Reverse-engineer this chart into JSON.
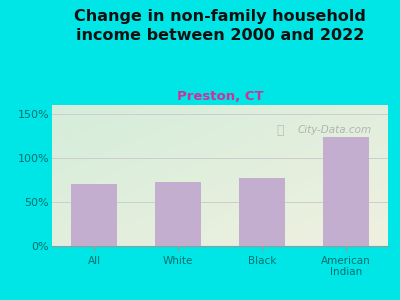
{
  "title": "Change in non-family household\nincome between 2000 and 2022",
  "subtitle": "Preston, CT",
  "categories": [
    "All",
    "White",
    "Black",
    "American\nIndian"
  ],
  "values": [
    70,
    73,
    77,
    124
  ],
  "bar_color": "#c4aed0",
  "title_fontsize": 11.5,
  "subtitle_fontsize": 9.5,
  "subtitle_color": "#cc3399",
  "title_color": "#111111",
  "tick_color": "#007070",
  "ylim": [
    0,
    160
  ],
  "yticks": [
    0,
    50,
    100,
    150
  ],
  "ytick_labels": [
    "0%",
    "50%",
    "100%",
    "150%"
  ],
  "background_outer": "#00e5e5",
  "background_plot_topleft": "#d4edda",
  "background_plot_bottomright": "#f0f0e0",
  "watermark": "City-Data.com",
  "grid_color": "#cccccc"
}
